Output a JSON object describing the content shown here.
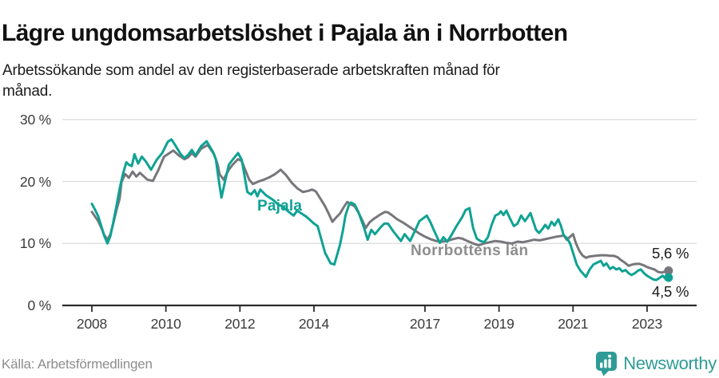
{
  "header": {
    "title": "Lägre ungdomsarbetslöshet i Pajala än i Norrbotten",
    "subtitle": "Arbetssökande som andel av den registerbaserade arbetskraften månad för\nmånad."
  },
  "chart_data": {
    "type": "line",
    "title": "Lägre ungdomsarbetslöshet i Pajala än i Norrbotten",
    "unit": "percent of registered labour force",
    "grid": true,
    "legend_position": "inline-labels",
    "ylim": [
      0,
      30
    ],
    "xlim_years": [
      2007.2,
      2024.3
    ],
    "y_axis": {
      "ticks": [
        {
          "value": 0,
          "label": "0 %"
        },
        {
          "value": 10,
          "label": "10 %"
        },
        {
          "value": 20,
          "label": "20 %"
        },
        {
          "value": 30,
          "label": "30 %"
        }
      ]
    },
    "x_axis": {
      "ticks": [
        {
          "year": 2008,
          "label": "2008"
        },
        {
          "year": 2010,
          "label": "2010"
        },
        {
          "year": 2012,
          "label": "2012"
        },
        {
          "year": 2014,
          "label": "2014"
        },
        {
          "year": 2017,
          "label": "2017"
        },
        {
          "year": 2019,
          "label": "2019"
        },
        {
          "year": 2021,
          "label": "2021"
        },
        {
          "year": 2023,
          "label": "2023"
        }
      ]
    },
    "series": [
      {
        "name": "Pajala",
        "color": "#0FA294",
        "end_label": "4,5 %",
        "end_value": 4.5,
        "points": [
          [
            2008.0,
            16.4
          ],
          [
            2008.08,
            15.5
          ],
          [
            2008.17,
            14.4
          ],
          [
            2008.25,
            12.9
          ],
          [
            2008.33,
            11.3
          ],
          [
            2008.42,
            10.0
          ],
          [
            2008.5,
            11.2
          ],
          [
            2008.58,
            13.5
          ],
          [
            2008.67,
            16.2
          ],
          [
            2008.75,
            18.8
          ],
          [
            2008.83,
            21.0
          ],
          [
            2008.93,
            23.1
          ],
          [
            2009.0,
            22.7
          ],
          [
            2009.08,
            22.5
          ],
          [
            2009.15,
            24.4
          ],
          [
            2009.25,
            22.9
          ],
          [
            2009.35,
            24.0
          ],
          [
            2009.45,
            23.3
          ],
          [
            2009.6,
            21.9
          ],
          [
            2009.75,
            23.5
          ],
          [
            2009.9,
            24.6
          ],
          [
            2010.05,
            26.4
          ],
          [
            2010.15,
            26.8
          ],
          [
            2010.25,
            25.9
          ],
          [
            2010.4,
            24.4
          ],
          [
            2010.5,
            23.8
          ],
          [
            2010.6,
            24.3
          ],
          [
            2010.7,
            25.1
          ],
          [
            2010.8,
            24.2
          ],
          [
            2010.95,
            25.7
          ],
          [
            2011.1,
            26.5
          ],
          [
            2011.27,
            24.8
          ],
          [
            2011.35,
            23.6
          ],
          [
            2011.42,
            20.6
          ],
          [
            2011.5,
            17.4
          ],
          [
            2011.6,
            20.1
          ],
          [
            2011.7,
            22.7
          ],
          [
            2011.8,
            23.5
          ],
          [
            2011.95,
            24.6
          ],
          [
            2012.05,
            23.5
          ],
          [
            2012.2,
            18.3
          ],
          [
            2012.3,
            17.9
          ],
          [
            2012.4,
            18.6
          ],
          [
            2012.47,
            17.6
          ],
          [
            2012.55,
            18.7
          ],
          [
            2012.7,
            17.8
          ],
          [
            2012.9,
            17.0
          ],
          [
            2013.05,
            16.2
          ],
          [
            2013.15,
            16.0
          ],
          [
            2013.3,
            15.2
          ],
          [
            2013.45,
            14.5
          ],
          [
            2013.55,
            15.3
          ],
          [
            2013.8,
            14.3
          ],
          [
            2014.0,
            13.2
          ],
          [
            2014.1,
            12.8
          ],
          [
            2014.3,
            8.5
          ],
          [
            2014.45,
            6.8
          ],
          [
            2014.55,
            6.6
          ],
          [
            2014.7,
            9.7
          ],
          [
            2014.78,
            12.0
          ],
          [
            2014.85,
            14.5
          ],
          [
            2014.95,
            16.3
          ],
          [
            2015.0,
            16.6
          ],
          [
            2015.1,
            16.3
          ],
          [
            2015.2,
            15.1
          ],
          [
            2015.35,
            12.6
          ],
          [
            2015.45,
            10.6
          ],
          [
            2015.55,
            12.2
          ],
          [
            2015.65,
            11.5
          ],
          [
            2015.8,
            12.6
          ],
          [
            2015.9,
            13.2
          ],
          [
            2016.0,
            13.2
          ],
          [
            2016.15,
            11.9
          ],
          [
            2016.35,
            10.4
          ],
          [
            2016.45,
            11.5
          ],
          [
            2016.6,
            10.4
          ],
          [
            2016.75,
            12.3
          ],
          [
            2016.85,
            13.6
          ],
          [
            2017.05,
            14.5
          ],
          [
            2017.15,
            13.4
          ],
          [
            2017.25,
            12.0
          ],
          [
            2017.4,
            10.1
          ],
          [
            2017.5,
            11.0
          ],
          [
            2017.6,
            10.3
          ],
          [
            2017.7,
            11.2
          ],
          [
            2017.85,
            12.8
          ],
          [
            2018.0,
            14.2
          ],
          [
            2018.1,
            15.4
          ],
          [
            2018.2,
            15.7
          ],
          [
            2018.3,
            12.5
          ],
          [
            2018.4,
            10.8
          ],
          [
            2018.5,
            10.4
          ],
          [
            2018.6,
            10.2
          ],
          [
            2018.7,
            11.0
          ],
          [
            2018.8,
            13.0
          ],
          [
            2018.9,
            14.5
          ],
          [
            2019.0,
            14.8
          ],
          [
            2019.05,
            15.2
          ],
          [
            2019.12,
            14.6
          ],
          [
            2019.2,
            15.3
          ],
          [
            2019.3,
            14.0
          ],
          [
            2019.4,
            12.8
          ],
          [
            2019.5,
            13.2
          ],
          [
            2019.6,
            14.5
          ],
          [
            2019.7,
            13.6
          ],
          [
            2019.85,
            14.9
          ],
          [
            2020.0,
            12.2
          ],
          [
            2020.08,
            11.7
          ],
          [
            2020.17,
            12.3
          ],
          [
            2020.25,
            13.0
          ],
          [
            2020.33,
            12.4
          ],
          [
            2020.42,
            13.5
          ],
          [
            2020.5,
            12.9
          ],
          [
            2020.6,
            13.9
          ],
          [
            2020.67,
            12.9
          ],
          [
            2020.75,
            11.3
          ],
          [
            2020.83,
            10.9
          ],
          [
            2020.92,
            10.0
          ],
          [
            2021.0,
            8.5
          ],
          [
            2021.1,
            6.6
          ],
          [
            2021.2,
            5.6
          ],
          [
            2021.35,
            4.6
          ],
          [
            2021.45,
            5.8
          ],
          [
            2021.55,
            6.6
          ],
          [
            2021.65,
            6.9
          ],
          [
            2021.75,
            7.2
          ],
          [
            2021.83,
            6.4
          ],
          [
            2021.9,
            6.8
          ],
          [
            2022.0,
            5.9
          ],
          [
            2022.08,
            6.2
          ],
          [
            2022.17,
            5.8
          ],
          [
            2022.25,
            6.0
          ],
          [
            2022.33,
            5.5
          ],
          [
            2022.42,
            5.7
          ],
          [
            2022.5,
            5.2
          ],
          [
            2022.58,
            4.9
          ],
          [
            2022.67,
            5.2
          ],
          [
            2022.75,
            5.6
          ],
          [
            2022.83,
            5.8
          ],
          [
            2022.92,
            5.2
          ],
          [
            2023.0,
            4.8
          ],
          [
            2023.08,
            4.5
          ],
          [
            2023.17,
            4.2
          ],
          [
            2023.25,
            4.1
          ],
          [
            2023.33,
            4.4
          ],
          [
            2023.42,
            4.8
          ],
          [
            2023.5,
            4.3
          ],
          [
            2023.58,
            4.5
          ]
        ]
      },
      {
        "name": "Norrbottens län",
        "color": "#77777B",
        "label_color": "#8D8D8D",
        "end_label": "5,6 %",
        "end_value": 5.6,
        "points": [
          [
            2008.0,
            15.1
          ],
          [
            2008.08,
            14.4
          ],
          [
            2008.17,
            13.6
          ],
          [
            2008.25,
            12.6
          ],
          [
            2008.33,
            11.4
          ],
          [
            2008.42,
            10.6
          ],
          [
            2008.5,
            11.5
          ],
          [
            2008.58,
            13.3
          ],
          [
            2008.67,
            15.5
          ],
          [
            2008.75,
            17.2
          ],
          [
            2008.8,
            19.9
          ],
          [
            2008.9,
            21.2
          ],
          [
            2009.0,
            20.6
          ],
          [
            2009.1,
            21.6
          ],
          [
            2009.2,
            20.8
          ],
          [
            2009.3,
            21.4
          ],
          [
            2009.5,
            20.3
          ],
          [
            2009.65,
            20.1
          ],
          [
            2009.8,
            21.9
          ],
          [
            2009.95,
            24.0
          ],
          [
            2010.2,
            25.0
          ],
          [
            2010.35,
            24.2
          ],
          [
            2010.5,
            23.6
          ],
          [
            2010.6,
            23.9
          ],
          [
            2010.7,
            24.6
          ],
          [
            2010.8,
            24.0
          ],
          [
            2010.95,
            25.3
          ],
          [
            2011.13,
            25.9
          ],
          [
            2011.3,
            24.4
          ],
          [
            2011.4,
            22.7
          ],
          [
            2011.45,
            21.2
          ],
          [
            2011.56,
            20.3
          ],
          [
            2011.7,
            21.9
          ],
          [
            2011.8,
            22.7
          ],
          [
            2011.95,
            23.6
          ],
          [
            2012.05,
            23.3
          ],
          [
            2012.25,
            20.3
          ],
          [
            2012.35,
            19.6
          ],
          [
            2012.5,
            20.0
          ],
          [
            2012.65,
            20.3
          ],
          [
            2012.8,
            20.7
          ],
          [
            2012.95,
            21.2
          ],
          [
            2013.1,
            21.9
          ],
          [
            2013.25,
            21.0
          ],
          [
            2013.4,
            19.8
          ],
          [
            2013.55,
            18.9
          ],
          [
            2013.7,
            18.3
          ],
          [
            2013.85,
            18.5
          ],
          [
            2013.95,
            18.7
          ],
          [
            2014.05,
            18.4
          ],
          [
            2014.2,
            17.0
          ],
          [
            2014.3,
            16.0
          ],
          [
            2014.4,
            14.8
          ],
          [
            2014.5,
            13.5
          ],
          [
            2014.6,
            14.2
          ],
          [
            2014.7,
            14.8
          ],
          [
            2014.8,
            15.8
          ],
          [
            2014.9,
            16.7
          ],
          [
            2015.0,
            16.3
          ],
          [
            2015.1,
            16.0
          ],
          [
            2015.2,
            15.0
          ],
          [
            2015.3,
            13.8
          ],
          [
            2015.4,
            12.5
          ],
          [
            2015.5,
            13.4
          ],
          [
            2015.6,
            13.9
          ],
          [
            2015.7,
            14.3
          ],
          [
            2015.8,
            14.7
          ],
          [
            2015.92,
            15.1
          ],
          [
            2016.0,
            15.0
          ],
          [
            2016.1,
            14.6
          ],
          [
            2016.25,
            13.9
          ],
          [
            2016.4,
            13.4
          ],
          [
            2016.55,
            12.8
          ],
          [
            2016.7,
            12.2
          ],
          [
            2016.85,
            11.6
          ],
          [
            2017.0,
            11.1
          ],
          [
            2017.15,
            10.7
          ],
          [
            2017.3,
            10.4
          ],
          [
            2017.45,
            10.3
          ],
          [
            2017.6,
            10.4
          ],
          [
            2017.75,
            10.7
          ],
          [
            2017.9,
            10.9
          ],
          [
            2018.0,
            10.8
          ],
          [
            2018.15,
            10.4
          ],
          [
            2018.3,
            10.0
          ],
          [
            2018.45,
            9.7
          ],
          [
            2018.6,
            10.0
          ],
          [
            2018.75,
            10.2
          ],
          [
            2018.9,
            10.4
          ],
          [
            2019.05,
            10.3
          ],
          [
            2019.2,
            10.1
          ],
          [
            2019.35,
            10.0
          ],
          [
            2019.5,
            10.3
          ],
          [
            2019.65,
            10.2
          ],
          [
            2019.8,
            10.4
          ],
          [
            2019.95,
            10.6
          ],
          [
            2020.1,
            10.5
          ],
          [
            2020.25,
            10.7
          ],
          [
            2020.4,
            10.9
          ],
          [
            2020.55,
            11.1
          ],
          [
            2020.67,
            11.2
          ],
          [
            2020.75,
            11.3
          ],
          [
            2020.83,
            10.6
          ],
          [
            2021.0,
            11.5
          ],
          [
            2021.08,
            10.0
          ],
          [
            2021.17,
            8.8
          ],
          [
            2021.25,
            8.1
          ],
          [
            2021.35,
            7.7
          ],
          [
            2021.45,
            7.9
          ],
          [
            2021.6,
            8.0
          ],
          [
            2021.75,
            8.1
          ],
          [
            2021.9,
            8.1
          ],
          [
            2022.0,
            8.0
          ],
          [
            2022.1,
            8.0
          ],
          [
            2022.2,
            7.8
          ],
          [
            2022.3,
            7.3
          ],
          [
            2022.4,
            6.9
          ],
          [
            2022.5,
            6.4
          ],
          [
            2022.6,
            6.6
          ],
          [
            2022.7,
            6.7
          ],
          [
            2022.8,
            6.7
          ],
          [
            2022.9,
            6.5
          ],
          [
            2023.0,
            6.2
          ],
          [
            2023.1,
            6.0
          ],
          [
            2023.2,
            5.8
          ],
          [
            2023.3,
            5.4
          ],
          [
            2023.4,
            5.3
          ],
          [
            2023.5,
            5.5
          ],
          [
            2023.58,
            5.6
          ]
        ]
      }
    ]
  },
  "footer": {
    "source": "Källa: Arbetsförmedlingen",
    "brand": "Newsworthy",
    "brand_color": "#2F9B96",
    "brand_icon": "bar-chart-speech-bubble-icon"
  }
}
